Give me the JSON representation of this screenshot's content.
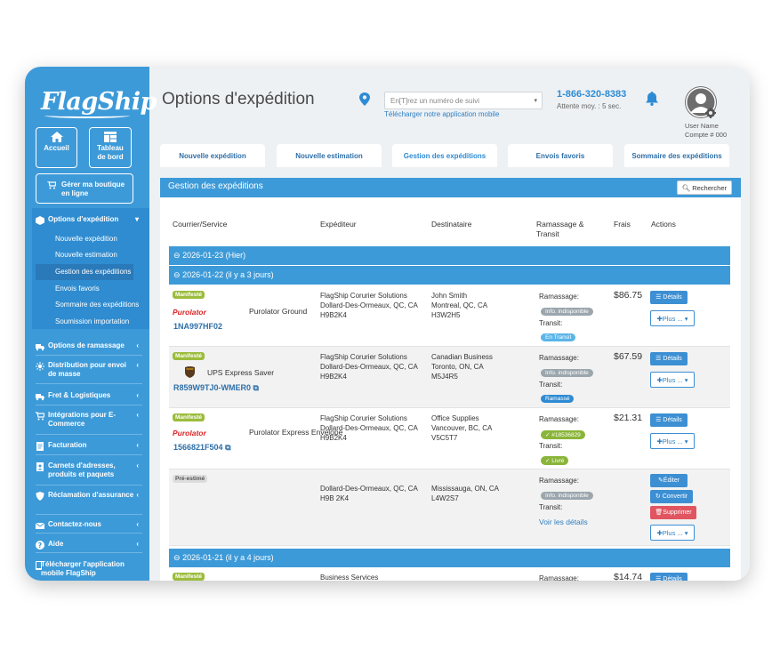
{
  "sidebar": {
    "logo": "FlagShip",
    "home_label": "Accueil",
    "dashboard_label": "Tableau de bord",
    "store_label": "Gérer ma boutique en ligne",
    "options_label": "Options d'expédition",
    "sub_items": [
      "Nouvelle expédition",
      "Nouvelle estimation",
      "Gestion des expéditions",
      "Envois favoris",
      "Sommaire des expéditions",
      "Soumission importation"
    ],
    "sections": [
      "Options de ramassage",
      "Distribution pour envoi de masse",
      "Fret & Logistiques",
      "Intégrations pour E-Commerce",
      "Facturation",
      "Carnets d'adresses, produits et paquets",
      "Réclamation d'assurance",
      "Contactez-nous",
      "Aide",
      "Télécharger l'application mobile FlagShip"
    ]
  },
  "header": {
    "title": "Options d'expédition",
    "tracking_placeholder": "En[T]rez un numéro de suivi",
    "app_link": "Télécharger notre application mobile",
    "phone": "1-866-320-8383",
    "wait": "Attente moy. : 5 sec.",
    "user_name": "User Name",
    "account": "Compte # 000"
  },
  "tabs": [
    "Nouvelle expédition",
    "Nouvelle estimation",
    "Gestion des expéditions",
    "Envois favoris",
    "Sommaire des expéditions"
  ],
  "panel": {
    "title": "Gestion des expéditions",
    "search": "Rechercher",
    "columns": [
      "Courrier/Service",
      "Expéditeur",
      "Destinataire",
      "Ramassage & Transit",
      "Frais",
      "Actions"
    ],
    "dates": [
      "2026-01-23 (Hier)",
      "2026-01-22 (il y a 3 jours)",
      "2026-01-21 (il y a 4 jours)"
    ]
  },
  "labels": {
    "manifested": "Manifesté",
    "pre_estimated": "Pré-estimé",
    "pickup": "Ramassage:",
    "transit": "Transit:",
    "details": "Détails",
    "plus": "Plus ...",
    "edit": "Éditer",
    "convert": "Convertir",
    "delete": "Supprimer",
    "see_details": "Voir les détails"
  },
  "rows": [
    {
      "carrier": "Purolator",
      "service": "Purolator Ground",
      "tracking": "1NA997HF02",
      "sender": [
        "FlagShip Corurier Solutions",
        "Dollard-Des-Ormeaux, QC, CA",
        "H9B2K4"
      ],
      "recipient": [
        "John Smith",
        "Montreal, QC, CA",
        "H3W2H5"
      ],
      "pickup_pill": "Info. indisponible",
      "transit_pill": "En Transit",
      "price": "$86.75"
    },
    {
      "carrier": "UPS",
      "service": "UPS Express Saver",
      "tracking": "R859W9TJ0-WMER0",
      "sender": [
        "FlagShip Corurier Solutions",
        "Dollard-Des-Ormeaux, QC, CA",
        "H9B2K4"
      ],
      "recipient": [
        "Canadian Business",
        "Toronto, ON, CA",
        "M5J4R5"
      ],
      "pickup_pill": "Info. indisponible",
      "transit_pill": "Ramassé",
      "price": "$67.59"
    },
    {
      "carrier": "Purolator",
      "service": "Purolator Express Envelope",
      "tracking": "1566821F504",
      "sender": [
        "FlagShip Corurier Solutions",
        "Dollard-Des-Ormeaux, QC, CA",
        "H9B2K4"
      ],
      "recipient": [
        "Office Supplies",
        "Vancouver, BC, CA",
        "V5C5T7"
      ],
      "pickup_pill": "#18536829",
      "transit_pill": "Livré",
      "price": "$21.31"
    },
    {
      "sender": [
        "Dollard-Des-Ormeaux, QC, CA",
        "H9B 2K4"
      ],
      "recipient": [
        "Mississauga, ON, CA",
        "L4W2S7"
      ],
      "pickup_pill": "Info. indisponible"
    },
    {
      "sender_name": "Business Services",
      "price": "$14.74"
    }
  ]
}
